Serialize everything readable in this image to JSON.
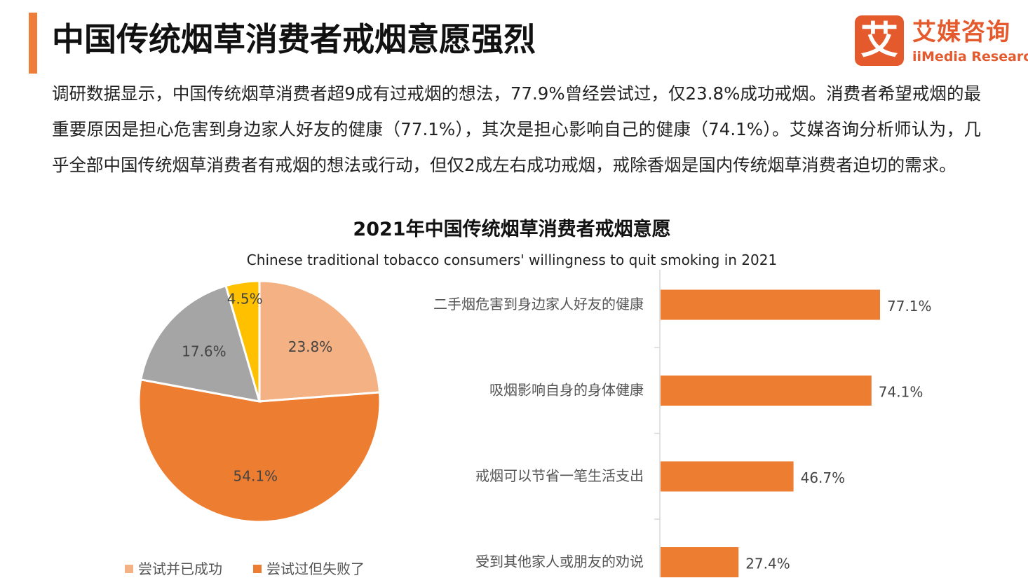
{
  "header": {
    "title": "中国传统烟草消费者戒烟意愿强烈",
    "brand_name": "艾媒咨询",
    "brand_sub": "iiMedia Research",
    "brand_mark": "艾"
  },
  "intro": "调研数据显示，中国传统烟草消费者超9成有过戒烟的想法，77.9%曾经尝试过，仅23.8%成功戒烟。消费者希望戒烟的最重要原因是担心危害到身边家人好友的健康（77.1%），其次是担心影响自己的健康（74.1%）。艾媒咨询分析师认为，几乎全部中国传统烟草消费者有戒烟的想法或行动，但仅2成左右成功戒烟，戒除香烟是国内传统烟草消费者迫切的需求。",
  "colors": {
    "accent": "#ee7d3a",
    "brand": "#e55a2c"
  },
  "chart_data": [
    {
      "type": "pie",
      "title": "2021年中国传统烟草消费者戒烟意愿",
      "subtitle": "Chinese traditional tobacco consumers' willingness to quit smoking in 2021",
      "slices": [
        {
          "name": "尝试并已成功",
          "label": "23.8%",
          "value": 23.8,
          "color": "#f4b183"
        },
        {
          "name": "尝试过但失败了",
          "label": "54.1%",
          "value": 54.1,
          "color": "#ed7d31"
        },
        {
          "name": "",
          "label": "17.6%",
          "value": 17.6,
          "color": "#a5a5a5"
        },
        {
          "name": "",
          "label": "4.5%",
          "value": 4.5,
          "color": "#ffc000"
        }
      ],
      "legend": [
        "尝试并已成功",
        "尝试过但失败了"
      ],
      "legend_position": "bottom"
    },
    {
      "type": "bar",
      "orientation": "horizontal",
      "categories": [
        "二手烟危害到身边家人好友的健康",
        "吸烟影响自身的身体健康",
        "戒烟可以节省一笔生活支出",
        "受到其他家人或朋友的劝说"
      ],
      "values": [
        77.1,
        74.1,
        46.7,
        27.4
      ],
      "value_labels": [
        "77.1%",
        "74.1%",
        "46.7%",
        "27.4%"
      ],
      "color": "#ed7d31",
      "grid": false
    }
  ]
}
